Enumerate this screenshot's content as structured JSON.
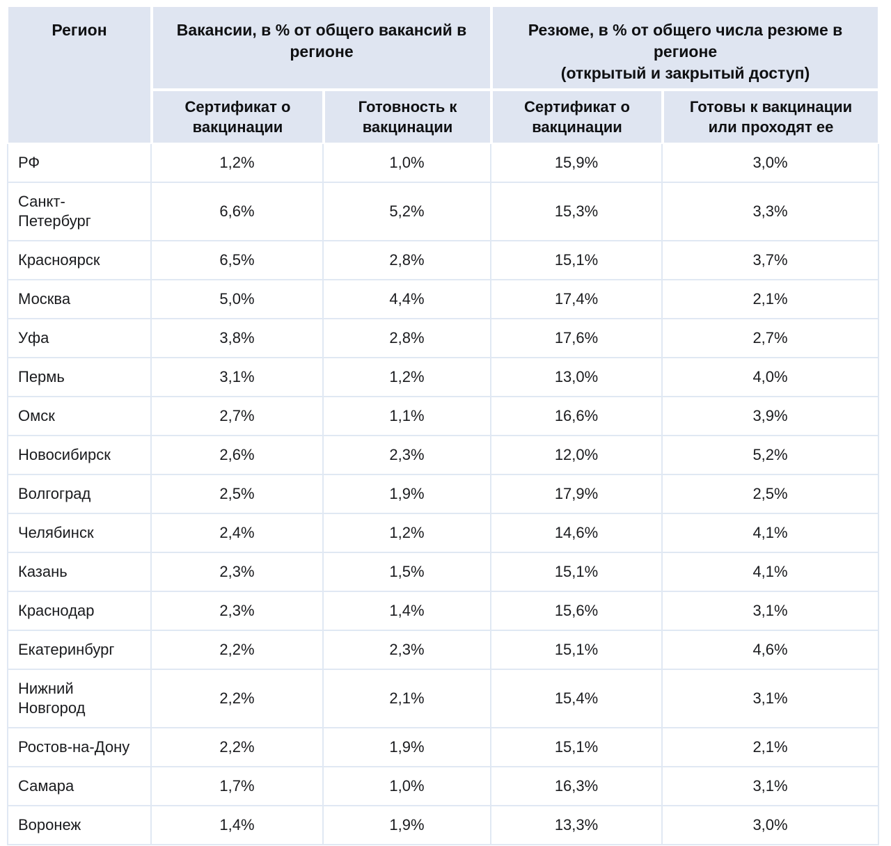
{
  "table": {
    "header": {
      "region": "Регион",
      "vacancies_group": "Вакансии, в % от общего вакансий в\nрегионе",
      "resumes_group": "Резюме, в % от общего числа резюме в\nрегионе\n(открытый и закрытый доступ)",
      "sub_columns": [
        "Сертификат о\nвакцинации",
        "Готовность к\nвакцинации",
        "Сертификат о\nвакцинации",
        "Готовы к вакцинации\nили проходят ее"
      ]
    },
    "rows": [
      {
        "region": "РФ",
        "values": [
          "1,2%",
          "1,0%",
          "15,9%",
          "3,0%"
        ]
      },
      {
        "region": "Санкт-\nПетербург",
        "values": [
          "6,6%",
          "5,2%",
          "15,3%",
          "3,3%"
        ]
      },
      {
        "region": "Красноярск",
        "values": [
          "6,5%",
          "2,8%",
          "15,1%",
          "3,7%"
        ]
      },
      {
        "region": "Москва",
        "values": [
          "5,0%",
          "4,4%",
          "17,4%",
          "2,1%"
        ]
      },
      {
        "region": "Уфа",
        "values": [
          "3,8%",
          "2,8%",
          "17,6%",
          "2,7%"
        ]
      },
      {
        "region": "Пермь",
        "values": [
          "3,1%",
          "1,2%",
          "13,0%",
          "4,0%"
        ]
      },
      {
        "region": "Омск",
        "values": [
          "2,7%",
          "1,1%",
          "16,6%",
          "3,9%"
        ]
      },
      {
        "region": "Новосибирск",
        "values": [
          "2,6%",
          "2,3%",
          "12,0%",
          "5,2%"
        ]
      },
      {
        "region": "Волгоград",
        "values": [
          "2,5%",
          "1,9%",
          "17,9%",
          "2,5%"
        ]
      },
      {
        "region": "Челябинск",
        "values": [
          "2,4%",
          "1,2%",
          "14,6%",
          "4,1%"
        ]
      },
      {
        "region": "Казань",
        "values": [
          "2,3%",
          "1,5%",
          "15,1%",
          "4,1%"
        ]
      },
      {
        "region": "Краснодар",
        "values": [
          "2,3%",
          "1,4%",
          "15,6%",
          "3,1%"
        ]
      },
      {
        "region": "Екатеринбург",
        "values": [
          "2,2%",
          "2,3%",
          "15,1%",
          "4,6%"
        ]
      },
      {
        "region": "Нижний\nНовгород",
        "values": [
          "2,2%",
          "2,1%",
          "15,4%",
          "3,1%"
        ]
      },
      {
        "region": "Ростов-на-Дону",
        "values": [
          "2,2%",
          "1,9%",
          "15,1%",
          "2,1%"
        ]
      },
      {
        "region": "Самара",
        "values": [
          "1,7%",
          "1,0%",
          "16,3%",
          "3,1%"
        ]
      },
      {
        "region": "Воронеж",
        "values": [
          "1,4%",
          "1,9%",
          "13,3%",
          "3,0%"
        ]
      }
    ],
    "colors": {
      "header_background": "#dfe5f1",
      "body_border": "#e0e8f3",
      "text": "#1a1b1e"
    }
  },
  "chart_data": {
    "type": "table",
    "title": "",
    "columns": [
      "Регион",
      "Вакансии: Сертификат о вакцинации",
      "Вакансии: Готовность к вакцинации",
      "Резюме: Сертификат о вакцинации",
      "Резюме: Готовы к вакцинации или проходят ее"
    ],
    "rows": [
      [
        "РФ",
        "1,2%",
        "1,0%",
        "15,9%",
        "3,0%"
      ],
      [
        "Санкт-Петербург",
        "6,6%",
        "5,2%",
        "15,3%",
        "3,3%"
      ],
      [
        "Красноярск",
        "6,5%",
        "2,8%",
        "15,1%",
        "3,7%"
      ],
      [
        "Москва",
        "5,0%",
        "4,4%",
        "17,4%",
        "2,1%"
      ],
      [
        "Уфа",
        "3,8%",
        "2,8%",
        "17,6%",
        "2,7%"
      ],
      [
        "Пермь",
        "3,1%",
        "1,2%",
        "13,0%",
        "4,0%"
      ],
      [
        "Омск",
        "2,7%",
        "1,1%",
        "16,6%",
        "3,9%"
      ],
      [
        "Новосибирск",
        "2,6%",
        "2,3%",
        "12,0%",
        "5,2%"
      ],
      [
        "Волгоград",
        "2,5%",
        "1,9%",
        "17,9%",
        "2,5%"
      ],
      [
        "Челябинск",
        "2,4%",
        "1,2%",
        "14,6%",
        "4,1%"
      ],
      [
        "Казань",
        "2,3%",
        "1,5%",
        "15,1%",
        "4,1%"
      ],
      [
        "Краснодар",
        "2,3%",
        "1,4%",
        "15,6%",
        "3,1%"
      ],
      [
        "Екатеринбург",
        "2,2%",
        "2,3%",
        "15,1%",
        "4,6%"
      ],
      [
        "Нижний Новгород",
        "2,2%",
        "2,1%",
        "15,4%",
        "3,1%"
      ],
      [
        "Ростов-на-Дону",
        "2,2%",
        "1,9%",
        "15,1%",
        "2,1%"
      ],
      [
        "Самара",
        "1,7%",
        "1,0%",
        "16,3%",
        "3,1%"
      ],
      [
        "Воронеж",
        "1,4%",
        "1,9%",
        "13,3%",
        "3,0%"
      ]
    ]
  }
}
